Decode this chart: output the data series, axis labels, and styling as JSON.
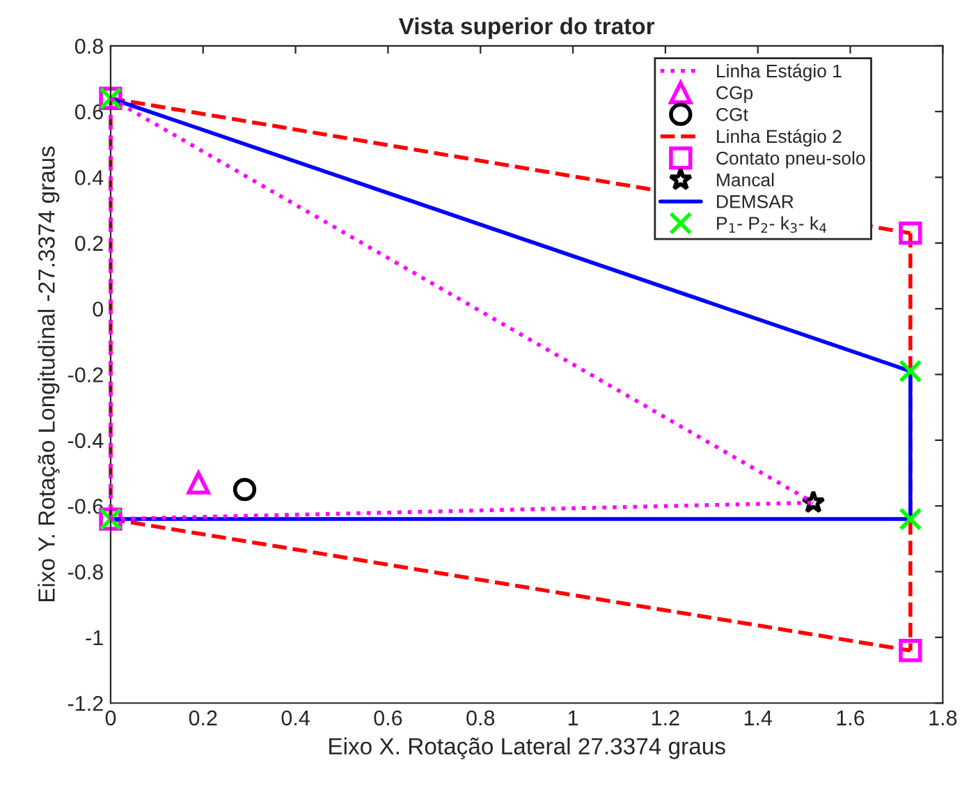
{
  "chart_data": {
    "type": "line",
    "title": "Vista superior do trator",
    "xlabel": "Eixo X. Rotação Lateral 27.3374 graus",
    "ylabel": "Eixo Y. Rotação Longitudinal -27.3374 graus",
    "xlim": [
      0,
      1.8
    ],
    "ylim": [
      -1.2,
      0.8
    ],
    "xticks": [
      0,
      0.2,
      0.4,
      0.6,
      0.8,
      1,
      1.2,
      1.4,
      1.6,
      1.8
    ],
    "yticks": [
      -1.2,
      -1,
      -0.8,
      -0.6,
      -0.4,
      -0.2,
      0,
      0.2,
      0.4,
      0.6,
      0.8
    ],
    "grid": false,
    "legend": "top right",
    "series": [
      {
        "name": "Linha Estágio 1",
        "color": "#ff00ff",
        "line_style": "dotted",
        "marker": "none",
        "x": [
          0,
          1.52
        ],
        "values": [
          0.64,
          -0.59
        ]
      },
      {
        "color": "#ff00ff",
        "line_style": "dotted",
        "marker": "none",
        "x": [
          0,
          1.52
        ],
        "values": [
          -0.64,
          -0.59
        ]
      },
      {
        "color": "#ff00ff",
        "line_style": "dotted",
        "marker": "none",
        "x": [
          0,
          0
        ],
        "values": [
          -0.64,
          0.64
        ]
      },
      {
        "name": "CGp",
        "type": "scatter",
        "color": "#ff00ff",
        "marker": "triangle",
        "x": [
          0.19
        ],
        "values": [
          -0.53
        ]
      },
      {
        "name": "CGt",
        "type": "scatter",
        "color": "#000000",
        "marker": "circle",
        "x": [
          0.29
        ],
        "values": [
          -0.55
        ]
      },
      {
        "name": "Linha Estágio 2",
        "color": "#ff0000",
        "line_style": "dashed",
        "marker": "none",
        "x": [
          0,
          1.73
        ],
        "values": [
          0.64,
          0.23
        ]
      },
      {
        "color": "#ff0000",
        "line_style": "dashed",
        "marker": "none",
        "x": [
          1.73,
          1.73
        ],
        "values": [
          0.23,
          -1.04
        ]
      },
      {
        "color": "#ff0000",
        "line_style": "dashed",
        "marker": "none",
        "x": [
          0,
          1.73
        ],
        "values": [
          -0.64,
          -1.04
        ]
      },
      {
        "color": "#ff0000",
        "line_style": "dashed",
        "marker": "none",
        "x": [
          0,
          0
        ],
        "values": [
          -0.64,
          0.64
        ]
      },
      {
        "name": "Contato pneu-solo",
        "type": "scatter",
        "color": "#ff00ff",
        "marker": "square",
        "x": [
          0,
          0,
          1.73,
          1.73
        ],
        "values": [
          0.64,
          -0.64,
          0.23,
          -1.04
        ]
      },
      {
        "name": "Mancal",
        "type": "scatter",
        "color": "#000000",
        "marker": "star",
        "x": [
          1.52
        ],
        "values": [
          -0.59
        ]
      },
      {
        "name": "DEMSAR",
        "color": "#0000ff",
        "line_style": "solid",
        "marker": "none",
        "x": [
          0,
          1.73
        ],
        "values": [
          0.64,
          -0.19
        ]
      },
      {
        "color": "#0000ff",
        "line_style": "solid",
        "marker": "none",
        "x": [
          1.73,
          1.73
        ],
        "values": [
          -0.19,
          -0.64
        ]
      },
      {
        "color": "#0000ff",
        "line_style": "solid",
        "marker": "none",
        "x": [
          0,
          1.73
        ],
        "values": [
          -0.64,
          -0.64
        ]
      },
      {
        "name": "P$_{1}$- P$_{2}$- k$_{3}$- k$_{4}$",
        "type": "scatter",
        "color": "#00ff00",
        "marker": "cross",
        "x": [
          0,
          0,
          1.73,
          1.73
        ],
        "values": [
          0.64,
          -0.64,
          -0.19,
          -0.64
        ]
      }
    ]
  }
}
